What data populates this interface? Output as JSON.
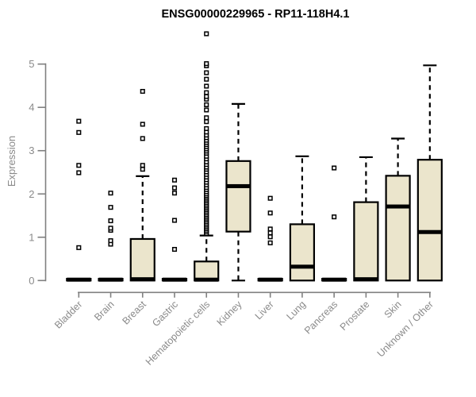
{
  "title": "ENSG00000229965 - RP11-118H4.1",
  "colors": {
    "box_fill": "#ebe5cc",
    "box_stroke": "#000000",
    "axis": "#808080",
    "axis_text": "#8a8a8a",
    "title_text": "#000000",
    "background": "#ffffff"
  },
  "chart_data": {
    "type": "boxplot",
    "title": "ENSG00000229965 - RP11-118H4.1",
    "xlabel": "",
    "ylabel": "Expression",
    "ylim": [
      0,
      5
    ],
    "yticks": [
      0,
      1,
      2,
      3,
      4,
      5
    ],
    "grid": false,
    "legend": "none",
    "categories": [
      "Bladder",
      "Brain",
      "Breast",
      "Gastric",
      "Hematopoietic cells",
      "Kidney",
      "Liver",
      "Lung",
      "Pancreas",
      "Prostate",
      "Skin",
      "Unknown / Other"
    ],
    "series": [
      {
        "label": "Bladder",
        "whisker_low": 0,
        "q1": 0,
        "median": 0.02,
        "q3": 0.04,
        "whisker_high": 0.04,
        "outliers": [
          0.76,
          2.49,
          2.66,
          3.42,
          3.68
        ]
      },
      {
        "label": "Brain",
        "whisker_low": 0,
        "q1": 0,
        "median": 0.02,
        "q3": 0.04,
        "whisker_high": 0.04,
        "outliers": [
          0.84,
          0.92,
          1.16,
          1.21,
          1.38,
          1.69,
          2.02
        ]
      },
      {
        "label": "Breast",
        "whisker_low": 0,
        "q1": 0,
        "median": 0.03,
        "q3": 0.96,
        "whisker_high": 2.41,
        "outliers": [
          2.57,
          2.66,
          3.28,
          3.61,
          4.37
        ]
      },
      {
        "label": "Gastric",
        "whisker_low": 0,
        "q1": 0,
        "median": 0.02,
        "q3": 0.04,
        "whisker_high": 0.04,
        "outliers": [
          0.72,
          1.39,
          2.02,
          2.14,
          2.32
        ]
      },
      {
        "label": "Hematopoietic cells",
        "whisker_low": 0,
        "q1": 0,
        "median": 0.02,
        "q3": 0.44,
        "whisker_high": 1.04,
        "outliers": [
          1.08,
          1.12,
          1.16,
          1.2,
          1.24,
          1.28,
          1.32,
          1.36,
          1.4,
          1.44,
          1.48,
          1.52,
          1.56,
          1.6,
          1.64,
          1.68,
          1.72,
          1.76,
          1.8,
          1.84,
          1.88,
          1.92,
          1.96,
          2.0,
          2.05,
          2.1,
          2.15,
          2.21,
          2.27,
          2.33,
          2.39,
          2.45,
          2.51,
          2.57,
          2.62,
          2.68,
          2.74,
          2.81,
          2.87,
          2.94,
          2.99,
          3.04,
          3.09,
          3.14,
          3.19,
          3.24,
          3.3,
          3.36,
          3.43,
          3.51,
          3.67,
          3.76,
          3.94,
          4.06,
          4.19,
          4.25,
          4.34,
          4.49,
          4.65,
          4.8,
          4.96,
          5.01,
          5.7
        ]
      },
      {
        "label": "Kidney",
        "whisker_low": 0,
        "q1": 1.13,
        "median": 2.18,
        "q3": 2.76,
        "whisker_high": 4.08,
        "outliers": []
      },
      {
        "label": "Liver",
        "whisker_low": 0,
        "q1": 0,
        "median": 0.02,
        "q3": 0.04,
        "whisker_high": 0.04,
        "outliers": [
          0.87,
          1.01,
          1.1,
          1.19,
          1.56,
          1.9
        ]
      },
      {
        "label": "Lung",
        "whisker_low": 0,
        "q1": 0,
        "median": 0.32,
        "q3": 1.3,
        "whisker_high": 2.87,
        "outliers": []
      },
      {
        "label": "Pancreas",
        "whisker_low": 0,
        "q1": 0,
        "median": 0.02,
        "q3": 0.04,
        "whisker_high": 0.04,
        "outliers": [
          1.47,
          2.6
        ]
      },
      {
        "label": "Prostate",
        "whisker_low": 0,
        "q1": 0,
        "median": 0.03,
        "q3": 1.81,
        "whisker_high": 2.85,
        "outliers": []
      },
      {
        "label": "Skin",
        "whisker_low": 0,
        "q1": 0,
        "median": 1.71,
        "q3": 2.42,
        "whisker_high": 3.28,
        "outliers": []
      },
      {
        "label": "Unknown / Other",
        "whisker_low": 0,
        "q1": 0,
        "median": 1.12,
        "q3": 2.79,
        "whisker_high": 4.97,
        "outliers": []
      }
    ]
  }
}
